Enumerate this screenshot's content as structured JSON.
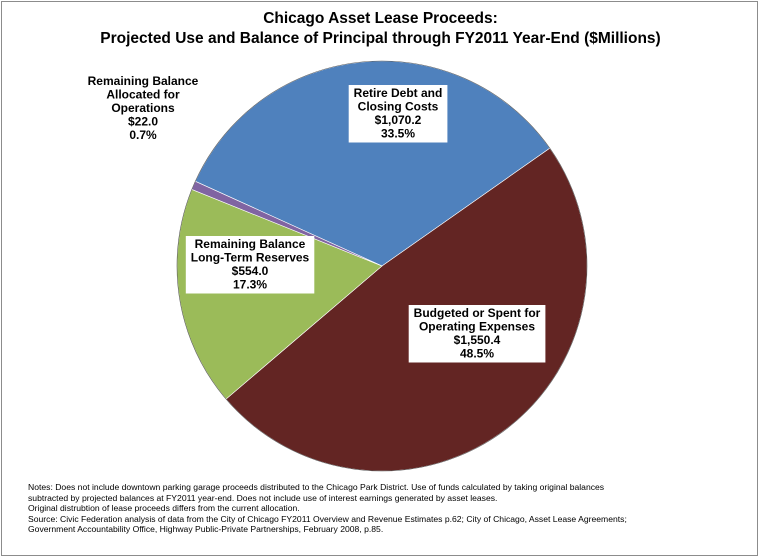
{
  "chart_data": {
    "type": "pie",
    "title": "Chicago Asset Lease Proceeds:",
    "subtitle": "Projected Use and Balance of Principal through FY2011 Year-End ($Millions)",
    "slices": [
      {
        "label_lines": [
          "Retire Debt and",
          "Closing Costs"
        ],
        "value_text": "$1,070.2",
        "percent_text": "33.5%",
        "value": 1070.2,
        "percent": 33.5,
        "color": "#4f81bd"
      },
      {
        "label_lines": [
          "Budgeted or Spent for",
          "Operating Expenses"
        ],
        "value_text": "$1,550.4",
        "percent_text": "48.5%",
        "value": 1550.4,
        "percent": 48.5,
        "color": "#632523"
      },
      {
        "label_lines": [
          "Remaining Balance",
          "Long-Term Reserves"
        ],
        "value_text": "$554.0",
        "percent_text": "17.3%",
        "value": 554.0,
        "percent": 17.3,
        "color": "#9bbb59"
      },
      {
        "label_lines": [
          "Remaining Balance",
          "Allocated for",
          "Operations"
        ],
        "value_text": "$22.0",
        "percent_text": "0.7%",
        "value": 22.0,
        "percent": 0.7,
        "color": "#8064a2"
      }
    ]
  },
  "notes": [
    "Notes: Does not include downtown parking garage proceeds distributed to the Chicago Park District. Use of funds calculated by taking original balances",
    "subtracted by projected balances at FY2011 year-end. Does not include use of interest earnings generated by asset leases.",
    "Original distrubtion of lease proceeds differs from the current allocation.",
    "Source: Civic Federation analysis of data from the City of Chicago FY2011 Overview and Revenue Estimates p.62; City of Chicago, Asset Lease Agreements;",
    "Government Accountability Office, Highway Public-Private Partnerships, February 2008, p.85."
  ]
}
